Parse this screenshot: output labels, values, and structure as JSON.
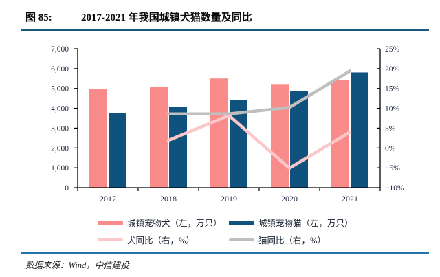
{
  "header": {
    "figure_label": "图 85:",
    "title": "2017-2021 年我国城镇犬猫数量及同比"
  },
  "footer": {
    "source": "数据来源：Wind，中信建投"
  },
  "colors": {
    "dog_bar": "#f98b8b",
    "cat_bar": "#0f527e",
    "dog_yoy_line": "#fbc7c9",
    "cat_yoy_line": "#bfbfbf",
    "title_rule": "#17587c",
    "footer_rule": "#2272ab"
  },
  "chart_data": {
    "type": "bar",
    "subtype": "bar-line combo, dual axis",
    "title": "2017-2021 年我国城镇犬猫数量及同比",
    "categories": [
      "2017",
      "2018",
      "2019",
      "2020",
      "2021"
    ],
    "series": [
      {
        "id": "dog",
        "name": "城镇宠物犬（左，万只）",
        "type": "bar",
        "axis": "left",
        "color": "#f98b8b",
        "values": [
          4990,
          5085,
          5503,
          5222,
          5429
        ]
      },
      {
        "id": "cat",
        "name": "城镇宠物猫（左，万只）",
        "type": "bar",
        "axis": "left",
        "color": "#0f527e",
        "values": [
          3742,
          4064,
          4412,
          4862,
          5806
        ]
      },
      {
        "id": "dog-yoy",
        "name": "犬同比（右，%）",
        "type": "line",
        "axis": "right",
        "color": "#fbc7c9",
        "values": [
          null,
          1.9,
          8.2,
          -5.1,
          4.0
        ]
      },
      {
        "id": "cat-yoy",
        "name": "猫同比（右，%）",
        "type": "line",
        "axis": "right",
        "color": "#bfbfbf",
        "values": [
          null,
          8.6,
          8.6,
          10.2,
          19.4
        ]
      }
    ],
    "left_axis": {
      "min": 0,
      "max": 7000,
      "step": 1000,
      "tick_labels": [
        "7,000",
        "6,000",
        "5,000",
        "4,000",
        "3,000",
        "2,000",
        "1,000",
        "0"
      ]
    },
    "right_axis": {
      "min": -10,
      "max": 25,
      "step": 5,
      "tick_labels": [
        "25%",
        "20%",
        "15%",
        "10%",
        "5%",
        "0%",
        "−5%",
        "−10%"
      ]
    },
    "grid": "off",
    "legend_position": "bottom, two columns"
  }
}
